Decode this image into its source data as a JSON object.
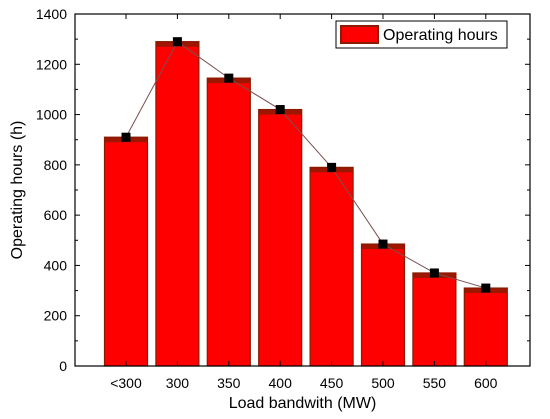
{
  "chart_data": {
    "type": "bar",
    "categories": [
      "<300",
      "300",
      "350",
      "400",
      "450",
      "500",
      "550",
      "600"
    ],
    "series": [
      {
        "name": "Operating hours",
        "values": [
          910,
          1290,
          1145,
          1020,
          790,
          485,
          370,
          310
        ],
        "color": "#ff0000",
        "edge_color": "#8b1a00",
        "marker_color": "#000000",
        "line_color": "#7a5050"
      }
    ],
    "xlabel": "Load bandwith (MW)",
    "ylabel": "Operating hours (h)",
    "ylim": [
      0,
      1400
    ],
    "yticks": [
      0,
      200,
      400,
      600,
      800,
      1000,
      1200,
      1400
    ],
    "grid": false,
    "legend": {
      "position": "top-right",
      "label": "Operating hours"
    },
    "overlay_line": true
  }
}
